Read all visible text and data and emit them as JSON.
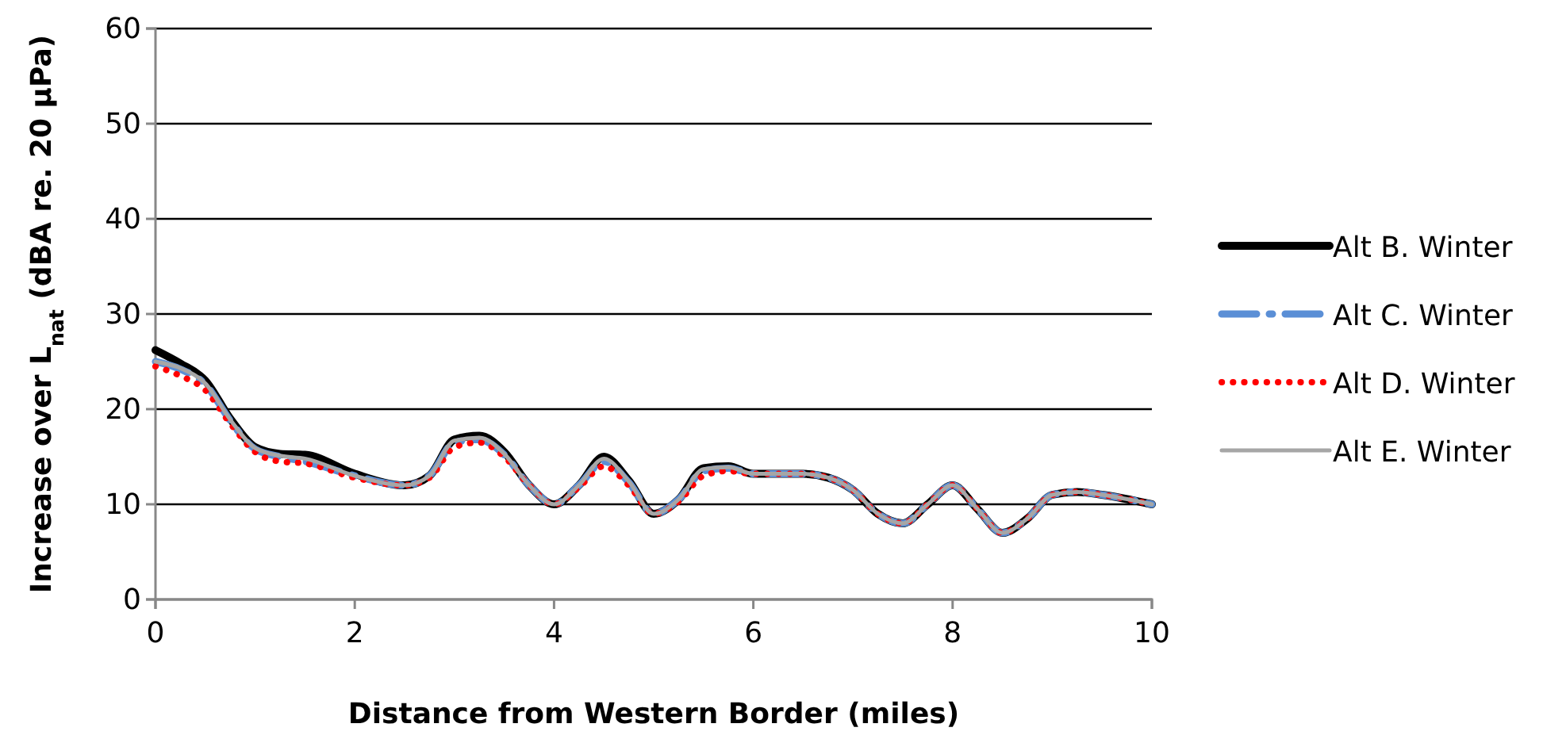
{
  "chart_data": {
    "type": "line",
    "xlabel": "Distance from Western Border (miles)",
    "ylabel": "Increase over L$_{nat}$ (dBA re. 20 µPa)",
    "x": [
      0,
      0.25,
      0.5,
      0.75,
      1,
      1.25,
      1.5,
      2,
      2.5,
      2.75,
      3,
      3.25,
      3.5,
      3.75,
      4,
      4.25,
      4.5,
      4.75,
      5,
      5.25,
      5.5,
      5.75,
      6,
      6.5,
      6.75,
      7,
      7.25,
      7.5,
      7.75,
      8,
      8.25,
      8.5,
      8.75,
      9,
      9.25,
      9.5,
      10
    ],
    "series": [
      {
        "name": "Alt B. Winter",
        "color": "#000000",
        "line_style": "solid",
        "values": [
          26.2,
          24.8,
          23,
          19,
          16,
          15.3,
          15.2,
          13.2,
          12,
          13,
          16.8,
          17.2,
          15.5,
          12,
          10,
          12,
          15,
          12.5,
          9,
          10.5,
          13.8,
          14,
          13.2,
          13.2,
          12.8,
          11.5,
          9,
          8,
          10,
          12,
          9.5,
          7,
          8.5,
          11,
          11.3,
          11,
          10
        ]
      },
      {
        "name": "Alt C. Winter",
        "color": "#5b8fd6",
        "line_style": "dashdot",
        "values": [
          25,
          24.2,
          22.6,
          18.8,
          15.8,
          15,
          14.5,
          13,
          12,
          13,
          16.5,
          16.8,
          15.2,
          12,
          10,
          12,
          14.5,
          12.3,
          9,
          10.5,
          13.5,
          13.8,
          13.2,
          13.2,
          12.8,
          11.5,
          9,
          8,
          10,
          12,
          9.5,
          7,
          8.5,
          11,
          11.3,
          11,
          10
        ]
      },
      {
        "name": "Alt D. Winter",
        "color": "#ff0000",
        "line_style": "dotted",
        "values": [
          24.5,
          23.5,
          22,
          18.5,
          15.5,
          14.5,
          14.3,
          12.8,
          12,
          12.8,
          16,
          16.5,
          15,
          12,
          10,
          11.8,
          14,
          12,
          9,
          10.3,
          13,
          13.5,
          13.2,
          13.2,
          12.8,
          11.5,
          9,
          8,
          10,
          12,
          9.5,
          7,
          8.5,
          11,
          11.3,
          11,
          10
        ]
      },
      {
        "name": "Alt E. Winter",
        "color": "#a6a6a6",
        "line_style": "solid",
        "values": [
          25,
          24.3,
          22.7,
          18.9,
          15.9,
          15.1,
          14.8,
          13,
          12,
          13,
          16.7,
          17,
          15.3,
          12,
          10,
          12,
          14.8,
          12.4,
          9,
          10.5,
          13.7,
          13.9,
          13.2,
          13.2,
          12.8,
          11.5,
          9,
          8,
          10,
          12,
          9.5,
          7,
          8.5,
          11,
          11.3,
          11,
          10
        ]
      }
    ],
    "xlim": [
      0,
      10
    ],
    "xticks": [
      0,
      2,
      4,
      6,
      8,
      10
    ],
    "ylim": [
      0,
      60
    ],
    "yticks": [
      0,
      10,
      20,
      30,
      40,
      50,
      60
    ],
    "grid": "y",
    "legend": "right",
    "marker": "none"
  }
}
